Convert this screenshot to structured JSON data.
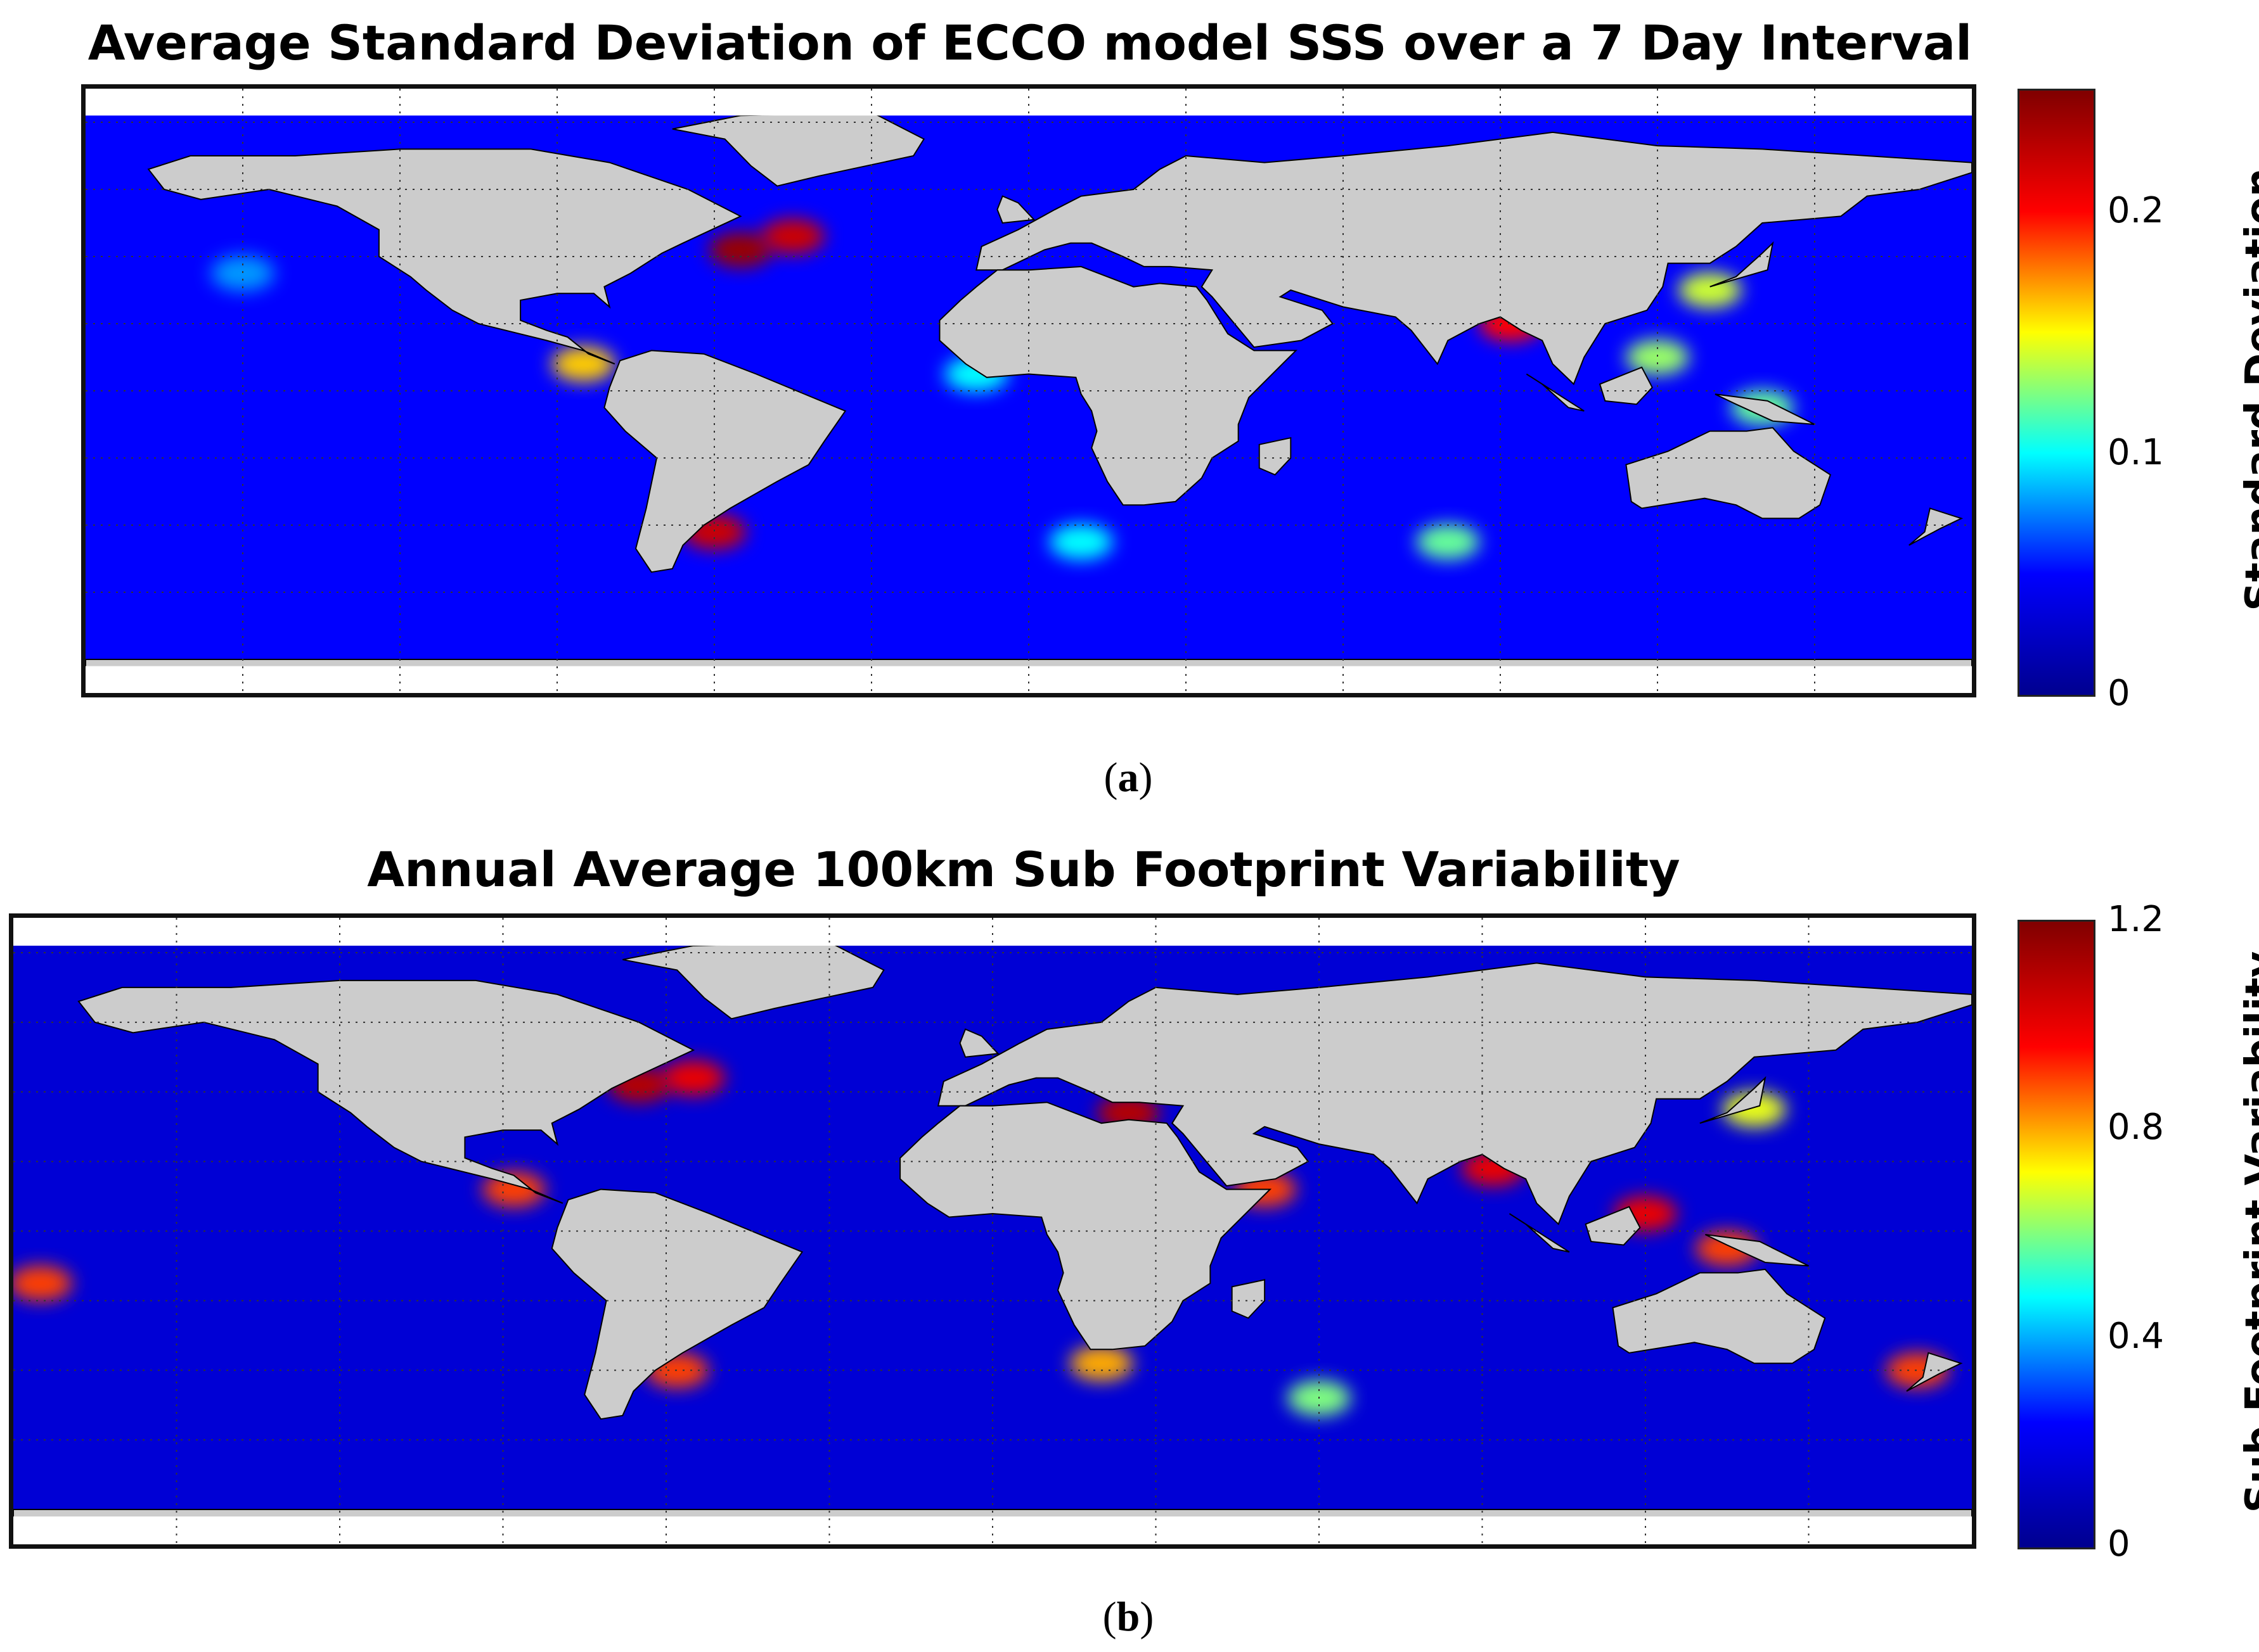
{
  "panels": [
    {
      "id": "a",
      "title": "Average Standard Deviation of ECCO model SSS over a 7 Day Interval",
      "caption_letter": "a",
      "colorbar": {
        "label": "Standard Deviation",
        "min": 0,
        "max": 0.25,
        "ticks": [
          "0.2",
          "0.1",
          "0"
        ],
        "tick_values": [
          0.2,
          0.1,
          0
        ]
      },
      "background_level": 0.05,
      "hotspots": [
        {
          "lon": -55,
          "lat": 42,
          "value": 0.24
        },
        {
          "lon": -45,
          "lat": 46,
          "value": 0.22
        },
        {
          "lon": -60,
          "lat": -42,
          "value": 0.22
        },
        {
          "lon": -85,
          "lat": 8,
          "value": 0.16
        },
        {
          "lon": 92,
          "lat": 20,
          "value": 0.2
        },
        {
          "lon": 130,
          "lat": 30,
          "value": 0.14
        },
        {
          "lon": 120,
          "lat": 10,
          "value": 0.13
        },
        {
          "lon": 80,
          "lat": -45,
          "value": 0.12
        },
        {
          "lon": -10,
          "lat": 5,
          "value": 0.1
        },
        {
          "lon": 140,
          "lat": -5,
          "value": 0.12
        },
        {
          "lon": -150,
          "lat": 35,
          "value": 0.08
        },
        {
          "lon": 10,
          "lat": -45,
          "value": 0.1
        }
      ]
    },
    {
      "id": "b",
      "title": "Annual Average 100km Sub Footprint Variability",
      "caption_letter": "b",
      "colorbar": {
        "label": "Sub Footprint Variability",
        "min": 0,
        "max": 1.2,
        "ticks": [
          "1.2",
          "0.8",
          "0.4",
          "0"
        ],
        "tick_values": [
          1.2,
          0.8,
          0.4,
          0
        ]
      },
      "background_level": 0.15,
      "hotspots": [
        {
          "lon": -65,
          "lat": 42,
          "value": 1.1
        },
        {
          "lon": -55,
          "lat": 44,
          "value": 1.0
        },
        {
          "lon": 25,
          "lat": 34,
          "value": 1.1
        },
        {
          "lon": 92,
          "lat": 18,
          "value": 1.0
        },
        {
          "lon": -58,
          "lat": -40,
          "value": 0.9
        },
        {
          "lon": 120,
          "lat": 5,
          "value": 1.0
        },
        {
          "lon": 135,
          "lat": -5,
          "value": 0.9
        },
        {
          "lon": -88,
          "lat": 12,
          "value": 0.9
        },
        {
          "lon": 170,
          "lat": -40,
          "value": 0.9
        },
        {
          "lon": 20,
          "lat": -38,
          "value": 0.8
        },
        {
          "lon": 60,
          "lat": -48,
          "value": 0.6
        },
        {
          "lon": -175,
          "lat": -15,
          "value": 0.9
        },
        {
          "lon": 50,
          "lat": 12,
          "value": 0.9
        },
        {
          "lon": 140,
          "lat": 35,
          "value": 0.7
        }
      ]
    }
  ],
  "colors": {
    "land": "#cccccc",
    "coast": "#000000",
    "grid": "#333333",
    "colormap": [
      "#00008f",
      "#0000ff",
      "#00ffff",
      "#ffff00",
      "#ff0000",
      "#800000"
    ]
  }
}
